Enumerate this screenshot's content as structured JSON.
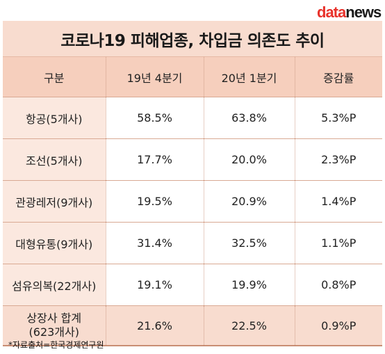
{
  "logo": {
    "part1": "data",
    "part2": "news"
  },
  "title": "코로나19 피해업종, 차입금 의존도 추이",
  "columns": [
    "구분",
    "19년 4분기",
    "20년 1분기",
    "증감률"
  ],
  "rows": [
    {
      "sector": "항공(5개사)",
      "q4_2019": "58.5%",
      "q1_2020": "63.8%",
      "change": "5.3%P"
    },
    {
      "sector": "조선(5개사)",
      "q4_2019": "17.7%",
      "q1_2020": "20.0%",
      "change": "2.3%P"
    },
    {
      "sector": "관광레저(9개사)",
      "q4_2019": "19.5%",
      "q1_2020": "20.9%",
      "change": "1.4%P"
    },
    {
      "sector": "대형유통(9개사)",
      "q4_2019": "31.4%",
      "q1_2020": "32.5%",
      "change": "1.1%P"
    },
    {
      "sector": "섬유의복(22개사)",
      "q4_2019": "19.1%",
      "q1_2020": "19.9%",
      "change": "0.8%P"
    }
  ],
  "total": {
    "sector_line1": "상장사 합계",
    "sector_line2": "(623개사)",
    "q4_2019": "21.6%",
    "q1_2020": "22.5%",
    "change": "0.9%P"
  },
  "source": "*자료출처=한국경제연구원"
}
